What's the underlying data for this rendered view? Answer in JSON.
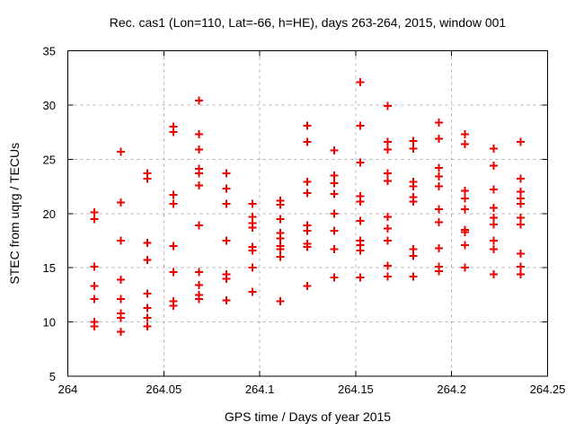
{
  "chart_data": {
    "type": "scatter",
    "title": "Rec. cas1 (Lon=110, Lat=-66, h=HE), days 263-264, 2015, window 001",
    "xlabel": "GPS time / Days of year 2015",
    "ylabel": "STEC from uqrg / TECUs",
    "xlim": [
      264,
      264.25
    ],
    "ylim": [
      5,
      35
    ],
    "grid": true,
    "legend": "none",
    "marker": "plus",
    "marker_color": "#ee0000",
    "grid_color": "#b0b0b0",
    "x_ticks": [
      {
        "value": 264.0,
        "label": "264"
      },
      {
        "value": 264.05,
        "label": "264.05"
      },
      {
        "value": 264.1,
        "label": "264.1"
      },
      {
        "value": 264.15,
        "label": "264.15"
      },
      {
        "value": 264.2,
        "label": "264.2"
      },
      {
        "value": 264.25,
        "label": "264.25"
      }
    ],
    "y_ticks": [
      {
        "value": 5,
        "label": "5"
      },
      {
        "value": 10,
        "label": "10"
      },
      {
        "value": 15,
        "label": "15"
      },
      {
        "value": 20,
        "label": "20"
      },
      {
        "value": 25,
        "label": "25"
      },
      {
        "value": 30,
        "label": "30"
      },
      {
        "value": 35,
        "label": "35"
      }
    ],
    "series": [
      {
        "name": "STEC from uqrg",
        "points": [
          [
            264.0137,
            20.1
          ],
          [
            264.0137,
            19.5
          ],
          [
            264.0137,
            15.1
          ],
          [
            264.0137,
            13.3
          ],
          [
            264.0137,
            12.1
          ],
          [
            264.0137,
            10.0
          ],
          [
            264.0137,
            9.6
          ],
          [
            264.0277,
            25.7
          ],
          [
            264.0277,
            21.0
          ],
          [
            264.0277,
            17.5
          ],
          [
            264.0277,
            13.9
          ],
          [
            264.0277,
            12.1
          ],
          [
            264.0277,
            10.8
          ],
          [
            264.0277,
            10.4
          ],
          [
            264.0277,
            9.1
          ],
          [
            264.0414,
            23.7
          ],
          [
            264.0414,
            23.2
          ],
          [
            264.0414,
            17.3
          ],
          [
            264.0414,
            15.7
          ],
          [
            264.0414,
            12.6
          ],
          [
            264.0414,
            11.3
          ],
          [
            264.0414,
            10.4
          ],
          [
            264.0414,
            9.6
          ],
          [
            264.0551,
            28.0
          ],
          [
            264.0551,
            27.5
          ],
          [
            264.0551,
            21.7
          ],
          [
            264.0551,
            20.9
          ],
          [
            264.0551,
            17.0
          ],
          [
            264.0551,
            14.6
          ],
          [
            264.0551,
            11.9
          ],
          [
            264.0551,
            11.5
          ],
          [
            264.0684,
            30.4
          ],
          [
            264.0684,
            27.3
          ],
          [
            264.0684,
            25.9
          ],
          [
            264.0684,
            24.1
          ],
          [
            264.0684,
            23.7
          ],
          [
            264.0684,
            22.6
          ],
          [
            264.0684,
            18.9
          ],
          [
            264.0684,
            14.6
          ],
          [
            264.0684,
            13.4
          ],
          [
            264.0684,
            12.5
          ],
          [
            264.0684,
            12.1
          ],
          [
            264.0826,
            23.7
          ],
          [
            264.0826,
            22.3
          ],
          [
            264.0826,
            20.9
          ],
          [
            264.0826,
            17.5
          ],
          [
            264.0826,
            14.4
          ],
          [
            264.0826,
            14.0
          ],
          [
            264.0826,
            12.0
          ],
          [
            264.0963,
            20.9
          ],
          [
            264.0963,
            19.7
          ],
          [
            264.0963,
            19.1
          ],
          [
            264.0963,
            18.7
          ],
          [
            264.0963,
            16.9
          ],
          [
            264.0963,
            16.6
          ],
          [
            264.0963,
            15.0
          ],
          [
            264.0963,
            12.8
          ],
          [
            264.1107,
            21.2
          ],
          [
            264.1107,
            20.8
          ],
          [
            264.1107,
            19.5
          ],
          [
            264.1107,
            18.2
          ],
          [
            264.1107,
            17.7
          ],
          [
            264.1107,
            17.0
          ],
          [
            264.1107,
            16.7
          ],
          [
            264.1107,
            16.0
          ],
          [
            264.1107,
            11.9
          ],
          [
            264.1248,
            28.1
          ],
          [
            264.1248,
            26.6
          ],
          [
            264.1248,
            22.9
          ],
          [
            264.1248,
            21.9
          ],
          [
            264.1248,
            18.9
          ],
          [
            264.1248,
            18.4
          ],
          [
            264.1248,
            17.2
          ],
          [
            264.1248,
            16.9
          ],
          [
            264.1248,
            13.3
          ],
          [
            264.1388,
            25.8
          ],
          [
            264.1388,
            23.5
          ],
          [
            264.1388,
            22.8
          ],
          [
            264.1388,
            21.8
          ],
          [
            264.1388,
            20.0
          ],
          [
            264.1388,
            18.4
          ],
          [
            264.1388,
            16.7
          ],
          [
            264.1388,
            14.1
          ],
          [
            264.1525,
            32.1
          ],
          [
            264.1525,
            28.1
          ],
          [
            264.1525,
            24.7
          ],
          [
            264.1525,
            21.6
          ],
          [
            264.1525,
            21.1
          ],
          [
            264.1525,
            19.3
          ],
          [
            264.1525,
            17.5
          ],
          [
            264.1525,
            17.1
          ],
          [
            264.1525,
            16.6
          ],
          [
            264.1525,
            14.1
          ],
          [
            264.1666,
            29.9
          ],
          [
            264.1666,
            26.6
          ],
          [
            264.1666,
            25.9
          ],
          [
            264.1666,
            23.7
          ],
          [
            264.1666,
            23.0
          ],
          [
            264.1666,
            19.7
          ],
          [
            264.1666,
            18.6
          ],
          [
            264.1666,
            17.5
          ],
          [
            264.1666,
            15.2
          ],
          [
            264.1666,
            14.2
          ],
          [
            264.1801,
            26.7
          ],
          [
            264.1801,
            26.0
          ],
          [
            264.1801,
            22.9
          ],
          [
            264.1801,
            22.5
          ],
          [
            264.1801,
            21.5
          ],
          [
            264.1801,
            21.1
          ],
          [
            264.1801,
            16.7
          ],
          [
            264.1801,
            16.1
          ],
          [
            264.1801,
            14.2
          ],
          [
            264.1934,
            28.4
          ],
          [
            264.1934,
            26.9
          ],
          [
            264.1934,
            24.2
          ],
          [
            264.1934,
            23.4
          ],
          [
            264.1934,
            22.5
          ],
          [
            264.1934,
            20.4
          ],
          [
            264.1934,
            19.2
          ],
          [
            264.1934,
            16.8
          ],
          [
            264.1934,
            15.1
          ],
          [
            264.1934,
            14.7
          ],
          [
            264.207,
            27.3
          ],
          [
            264.207,
            26.4
          ],
          [
            264.207,
            22.1
          ],
          [
            264.207,
            21.4
          ],
          [
            264.207,
            20.4
          ],
          [
            264.207,
            18.5
          ],
          [
            264.207,
            18.3
          ],
          [
            264.207,
            17.1
          ],
          [
            264.207,
            15.0
          ],
          [
            264.2219,
            26.0
          ],
          [
            264.2219,
            24.4
          ],
          [
            264.2219,
            22.2
          ],
          [
            264.2219,
            20.5
          ],
          [
            264.2219,
            19.6
          ],
          [
            264.2219,
            19.0
          ],
          [
            264.2219,
            17.5
          ],
          [
            264.2219,
            16.7
          ],
          [
            264.2219,
            14.4
          ],
          [
            264.236,
            26.6
          ],
          [
            264.236,
            23.2
          ],
          [
            264.236,
            22.0
          ],
          [
            264.236,
            21.4
          ],
          [
            264.236,
            20.9
          ],
          [
            264.236,
            19.6
          ],
          [
            264.236,
            19.0
          ],
          [
            264.236,
            16.3
          ],
          [
            264.236,
            15.1
          ],
          [
            264.236,
            14.4
          ]
        ]
      }
    ]
  }
}
